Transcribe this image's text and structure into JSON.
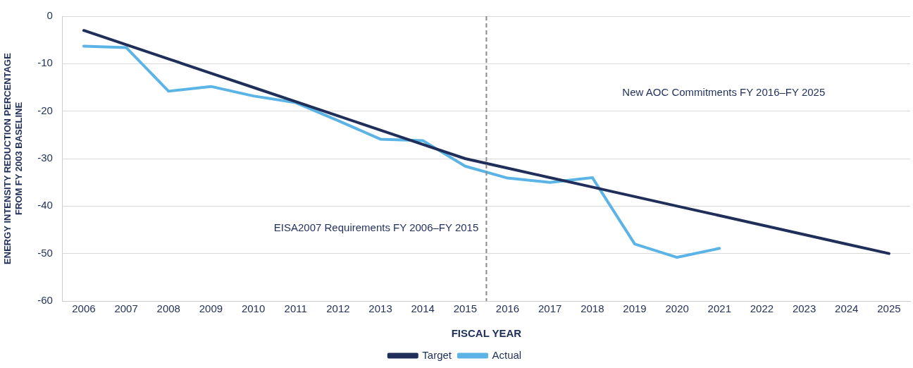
{
  "chart_data": {
    "type": "line",
    "xlabel": "FISCAL YEAR",
    "ylabel": "ENERGY INTENSITY REDUCTION PERCENTAGE\nFROM FY 2003 BASELINE",
    "x": [
      2006,
      2007,
      2008,
      2009,
      2010,
      2011,
      2012,
      2013,
      2014,
      2015,
      2016,
      2017,
      2018,
      2019,
      2020,
      2021,
      2022,
      2023,
      2024,
      2025
    ],
    "series": [
      {
        "name": "Target",
        "color": "#1f2f5a",
        "values": [
          -3,
          -6,
          -9,
          -12,
          -15,
          -18,
          -21,
          -24,
          -27,
          -30,
          -32,
          -34,
          -36,
          -38,
          -40,
          -42,
          -44,
          -46,
          -48,
          -50
        ]
      },
      {
        "name": "Actual",
        "color": "#5bb4e5",
        "values": [
          -6.3,
          -6.6,
          -15.8,
          -14.8,
          -16.8,
          -18.2,
          -22,
          -25.9,
          -26.2,
          -31.6,
          -34.1,
          -35,
          -34,
          -48,
          -50.8,
          -48.9,
          null,
          null,
          null,
          null
        ]
      }
    ],
    "xlim": [
      2005.5,
      2025.5
    ],
    "xticks": [
      2006,
      2007,
      2008,
      2009,
      2010,
      2011,
      2012,
      2013,
      2014,
      2015,
      2016,
      2017,
      2018,
      2019,
      2020,
      2021,
      2022,
      2023,
      2024,
      2025
    ],
    "ylim": [
      -60,
      0
    ],
    "yticks": [
      -60,
      -50,
      -40,
      -30,
      -20,
      -10,
      0
    ],
    "ref_lines": [
      {
        "axis": "x",
        "value": 2015.5,
        "label": null,
        "color": "#8c8c8c",
        "line_style": "dashed"
      }
    ],
    "annotations": [
      "EISA2007 Requirements FY 2006–FY 2015",
      "New AOC Commitments FY 2016–FY 2025"
    ],
    "grid": "y",
    "legend": "bottom",
    "marker": "none",
    "line_style": "solid"
  }
}
